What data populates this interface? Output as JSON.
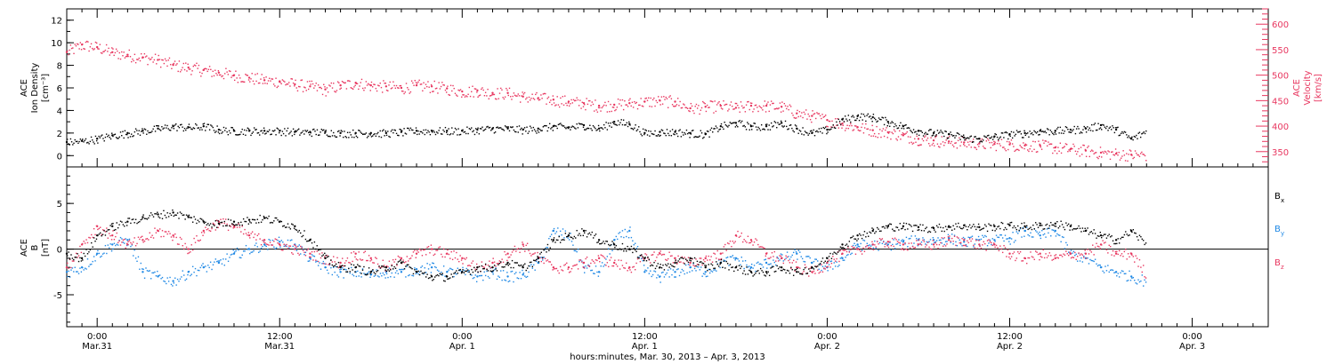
{
  "chart_data": [
    {
      "type": "scatter",
      "panel": "top",
      "xlabel": "hours:minutes, Mar. 30, 2013 – Apr.  3, 2013",
      "x_ticks": [
        {
          "x": 6,
          "time": "0:00",
          "date": "Mar.31"
        },
        {
          "x": 18,
          "time": "12:00",
          "date": "Mar.31"
        },
        {
          "x": 30,
          "time": "0:00",
          "date": "Apr. 1"
        },
        {
          "x": 42,
          "time": "12:00",
          "date": "Apr. 1"
        },
        {
          "x": 54,
          "time": "0:00",
          "date": "Apr. 2"
        },
        {
          "x": 66,
          "time": "12:00",
          "date": "Apr. 2"
        },
        {
          "x": 78,
          "time": "0:00",
          "date": "Apr. 3"
        }
      ],
      "xlim": [
        4,
        83
      ],
      "ylabel_left": [
        "ACE",
        "Ion Density",
        "[cm⁻³]"
      ],
      "ylim_left": [
        -1,
        13
      ],
      "left_ticks": [
        "0",
        "2",
        "4",
        "6",
        "8",
        "10",
        "12"
      ],
      "ylabel_right": [
        "ACE",
        "Velocity",
        "[km/s]"
      ],
      "ylim_right": [
        320,
        630
      ],
      "right_ticks": [
        "350",
        "400",
        "450",
        "500",
        "550",
        "600"
      ],
      "colors": {
        "density": "#000000",
        "velocity": "#e8365f"
      },
      "series": [
        {
          "axis": "left",
          "color": "#000000",
          "x": [
            4.0,
            5.0,
            6.0,
            7.0,
            8.0,
            9.0,
            10.0,
            11.0,
            12.0,
            13.0,
            14.0,
            15.0,
            16.0,
            17.0,
            18.0,
            19.0,
            20.0,
            21.0,
            22.0,
            23.0,
            24.0,
            25.0,
            26.0,
            27.0,
            28.0,
            29.0,
            30.0,
            31.0,
            32.0,
            33.0,
            34.0,
            35.0,
            36.0,
            37.0,
            38.0,
            39.0,
            40.0,
            41.0,
            42.0,
            43.0,
            44.0,
            45.0,
            46.0,
            47.0,
            48.0,
            49.0,
            50.0,
            51.0,
            52.0,
            53.0,
            54.0,
            55.0,
            56.0,
            57.0,
            58.0,
            59.0,
            60.0,
            61.0,
            62.0,
            63.0,
            64.0,
            65.0,
            66.0,
            67.0,
            68.0,
            69.0,
            70.0,
            71.0,
            72.0,
            73.0,
            74.0,
            75.0
          ],
          "y": [
            1.2,
            1.3,
            1.5,
            1.8,
            2.0,
            2.2,
            2.4,
            2.6,
            2.5,
            2.6,
            2.3,
            2.2,
            2.2,
            2.2,
            2.2,
            2.1,
            2.1,
            2.1,
            2.0,
            2.0,
            2.0,
            2.0,
            2.1,
            2.2,
            2.2,
            2.2,
            2.2,
            2.3,
            2.4,
            2.4,
            2.3,
            2.4,
            2.6,
            2.5,
            2.7,
            2.4,
            3.0,
            2.8,
            2.0,
            2.1,
            2.1,
            2.0,
            1.9,
            2.6,
            2.9,
            2.6,
            2.6,
            2.9,
            2.4,
            2.0,
            2.3,
            3.2,
            3.5,
            3.4,
            3.0,
            2.6,
            2.2,
            2.0,
            1.9,
            1.6,
            1.5,
            1.7,
            1.9,
            2.0,
            2.2,
            2.2,
            2.3,
            2.4,
            2.7,
            2.3,
            1.5,
            2.2
          ]
        },
        {
          "axis": "right",
          "color": "#e8365f",
          "x": [
            4.0,
            5.0,
            6.0,
            7.0,
            8.0,
            9.0,
            10.0,
            11.0,
            12.0,
            13.0,
            14.0,
            15.0,
            16.0,
            17.0,
            18.0,
            19.0,
            20.0,
            21.0,
            22.0,
            23.0,
            24.0,
            25.0,
            26.0,
            27.0,
            28.0,
            29.0,
            30.0,
            31.0,
            32.0,
            33.0,
            34.0,
            35.0,
            36.0,
            37.0,
            38.0,
            39.0,
            40.0,
            41.0,
            42.0,
            43.0,
            44.0,
            45.0,
            46.0,
            47.0,
            48.0,
            49.0,
            50.0,
            51.0,
            52.0,
            53.0,
            54.0,
            55.0,
            56.0,
            57.0,
            58.0,
            59.0,
            60.0,
            61.0,
            62.0,
            63.0,
            64.0,
            65.0,
            66.0,
            67.0,
            68.0,
            69.0,
            70.0,
            71.0,
            72.0,
            73.0,
            74.0,
            75.0
          ],
          "y": [
            545,
            560,
            555,
            545,
            540,
            535,
            530,
            520,
            515,
            510,
            505,
            500,
            495,
            490,
            488,
            482,
            478,
            472,
            480,
            485,
            480,
            478,
            475,
            480,
            478,
            474,
            468,
            470,
            465,
            465,
            458,
            455,
            452,
            448,
            445,
            440,
            442,
            445,
            448,
            450,
            448,
            435,
            438,
            440,
            436,
            440,
            440,
            438,
            425,
            420,
            412,
            405,
            398,
            392,
            388,
            382,
            375,
            372,
            370,
            368,
            366,
            365,
            364,
            362,
            362,
            358,
            355,
            352,
            348,
            346,
            344,
            344
          ]
        }
      ]
    },
    {
      "type": "scatter",
      "panel": "bottom",
      "ylabel": [
        "ACE",
        "B",
        "[nT]"
      ],
      "ylim": [
        -8.5,
        9
      ],
      "yticks": [
        "-5",
        "0",
        "5"
      ],
      "zero_line": true,
      "legend": [
        {
          "label": "B",
          "sub": "x",
          "color": "#000000"
        },
        {
          "label": "B",
          "sub": "y",
          "color": "#1e88e5"
        },
        {
          "label": "B",
          "sub": "z",
          "color": "#e8365f"
        }
      ],
      "series": [
        {
          "name": "Bx",
          "color": "#000000",
          "x": [
            4.0,
            5.0,
            6.0,
            7.0,
            8.0,
            9.0,
            10.0,
            11.0,
            12.0,
            13.0,
            14.0,
            15.0,
            16.0,
            17.0,
            18.0,
            19.0,
            20.0,
            21.0,
            22.0,
            23.0,
            24.0,
            25.0,
            26.0,
            27.0,
            28.0,
            29.0,
            30.0,
            31.0,
            32.0,
            33.0,
            34.0,
            35.0,
            36.0,
            37.0,
            38.0,
            39.0,
            40.0,
            41.0,
            42.0,
            43.0,
            44.0,
            45.0,
            46.0,
            47.0,
            48.0,
            49.0,
            50.0,
            51.0,
            52.0,
            53.0,
            54.0,
            55.0,
            56.0,
            57.0,
            58.0,
            59.0,
            60.0,
            61.0,
            62.0,
            63.0,
            64.0,
            65.0,
            66.0,
            67.0,
            68.0,
            69.0,
            70.0,
            71.0,
            72.0,
            73.0,
            74.0,
            75.0
          ],
          "y": [
            -0.5,
            -1.0,
            1.5,
            2.5,
            3.0,
            3.5,
            3.8,
            4.0,
            3.5,
            3.0,
            2.8,
            3.0,
            3.2,
            3.4,
            3.0,
            2.5,
            1.0,
            -1.0,
            -2.0,
            -2.0,
            -2.5,
            -2.0,
            -1.5,
            -2.5,
            -3.0,
            -3.0,
            -2.5,
            -2.0,
            -2.0,
            -1.5,
            -2.0,
            -1.0,
            1.0,
            1.5,
            2.0,
            1.0,
            0.5,
            0.0,
            -1.0,
            -2.0,
            -1.5,
            -1.0,
            -2.0,
            -1.5,
            -2.0,
            -2.5,
            -2.5,
            -2.0,
            -2.5,
            -2.0,
            -1.0,
            0.5,
            1.5,
            2.0,
            2.5,
            2.5,
            2.4,
            2.3,
            2.5,
            2.6,
            2.4,
            2.5,
            2.6,
            2.5,
            2.6,
            2.8,
            2.5,
            2.0,
            1.5,
            1.0,
            2.0,
            0.5
          ]
        },
        {
          "name": "By",
          "color": "#1e88e5",
          "x": [
            4.0,
            5.0,
            6.0,
            7.0,
            8.0,
            9.0,
            10.0,
            11.0,
            12.0,
            13.0,
            14.0,
            15.0,
            16.0,
            17.0,
            18.0,
            19.0,
            20.0,
            21.0,
            22.0,
            23.0,
            24.0,
            25.0,
            26.0,
            27.0,
            28.0,
            29.0,
            30.0,
            31.0,
            32.0,
            33.0,
            34.0,
            35.0,
            36.0,
            37.0,
            38.0,
            39.0,
            40.0,
            41.0,
            42.0,
            43.0,
            44.0,
            45.0,
            46.0,
            47.0,
            48.0,
            49.0,
            50.0,
            51.0,
            52.0,
            53.0,
            54.0,
            55.0,
            56.0,
            57.0,
            58.0,
            59.0,
            60.0,
            61.0,
            62.0,
            63.0,
            64.0,
            65.0,
            66.0,
            67.0,
            68.0,
            69.0,
            70.0,
            71.0,
            72.0,
            73.0,
            74.0,
            75.0
          ],
          "y": [
            -2.5,
            -2.0,
            -0.5,
            0.5,
            1.0,
            -2.5,
            -3.0,
            -3.5,
            -2.5,
            -2.0,
            -1.5,
            -0.5,
            0.0,
            0.5,
            0.8,
            0.5,
            -1.0,
            -2.0,
            -2.5,
            -2.5,
            -2.8,
            -2.5,
            -2.5,
            -2.2,
            -2.0,
            -2.5,
            -2.5,
            -3.0,
            -2.5,
            -3.0,
            -2.8,
            -1.5,
            2.0,
            1.5,
            -2.0,
            -2.5,
            1.0,
            2.0,
            -2.5,
            -3.0,
            -2.5,
            -2.0,
            -2.5,
            -1.5,
            -1.0,
            -2.0,
            -1.5,
            -1.0,
            -0.5,
            -1.5,
            -2.0,
            -1.0,
            0.5,
            0.5,
            0.5,
            0.8,
            1.0,
            1.0,
            1.2,
            0.8,
            1.0,
            1.0,
            1.2,
            2.0,
            1.5,
            2.0,
            -0.5,
            -1.0,
            -2.0,
            -2.5,
            -3.0,
            -3.5
          ]
        },
        {
          "name": "Bz",
          "color": "#e8365f",
          "x": [
            4.0,
            5.0,
            6.0,
            7.0,
            8.0,
            9.0,
            10.0,
            11.0,
            12.0,
            13.0,
            14.0,
            15.0,
            16.0,
            17.0,
            18.0,
            19.0,
            20.0,
            21.0,
            22.0,
            23.0,
            24.0,
            25.0,
            26.0,
            27.0,
            28.0,
            29.0,
            30.0,
            31.0,
            32.0,
            33.0,
            34.0,
            35.0,
            36.0,
            37.0,
            38.0,
            39.0,
            40.0,
            41.0,
            42.0,
            43.0,
            44.0,
            45.0,
            46.0,
            47.0,
            48.0,
            49.0,
            50.0,
            51.0,
            52.0,
            53.0,
            54.0,
            55.0,
            56.0,
            57.0,
            58.0,
            59.0,
            60.0,
            61.0,
            62.0,
            63.0,
            64.0,
            65.0,
            66.0,
            67.0,
            68.0,
            69.0,
            70.0,
            71.0,
            72.0,
            73.0,
            74.0,
            75.0
          ],
          "y": [
            -2.0,
            0.5,
            2.5,
            1.5,
            0.5,
            1.0,
            2.0,
            1.5,
            0.0,
            2.0,
            3.0,
            2.5,
            1.5,
            1.0,
            0.5,
            0.0,
            -0.5,
            -1.0,
            -1.5,
            -0.5,
            -1.0,
            -2.0,
            -1.0,
            -0.5,
            0.0,
            -0.5,
            -1.0,
            -2.0,
            -1.5,
            -0.5,
            0.5,
            -1.0,
            -2.0,
            -2.0,
            -1.5,
            -1.0,
            -1.5,
            -2.0,
            -1.0,
            -0.5,
            -1.0,
            -1.5,
            -1.0,
            -0.5,
            1.5,
            1.0,
            -0.5,
            -1.0,
            -2.0,
            -2.5,
            -1.5,
            -0.5,
            0.0,
            0.5,
            0.8,
            0.5,
            0.5,
            0.5,
            1.0,
            1.0,
            0.5,
            0.5,
            -0.5,
            -1.0,
            -0.5,
            -1.0,
            -0.5,
            -0.5,
            0.5,
            -0.5,
            -0.5,
            -2.8
          ]
        }
      ]
    }
  ]
}
